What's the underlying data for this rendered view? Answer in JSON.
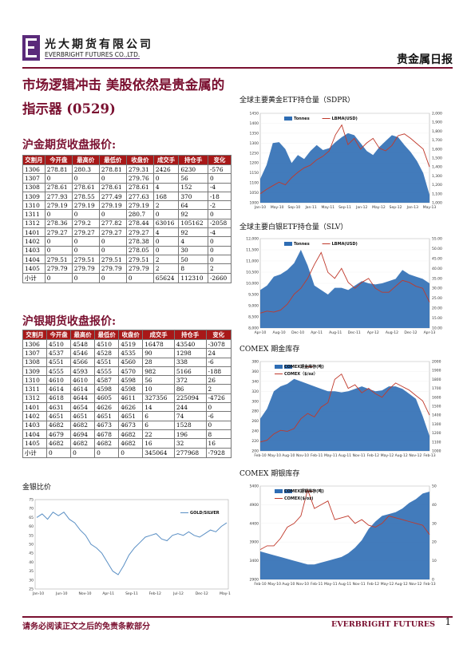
{
  "header": {
    "company_cn": "光大期货有限公司",
    "company_en": "EVERBRIGHT FUTURES CO.,LTD.",
    "doc_type": "贵金属日报"
  },
  "main_title": "市场逻辑冲击 美股依然是贵金属的指示器 (0529)",
  "gold_futures": {
    "title": "沪金期货收盘报价:",
    "headers": [
      "交割月",
      "今开盘",
      "最高价",
      "最低价",
      "收盘价",
      "成交手",
      "持仓手",
      "变化"
    ],
    "rows": [
      [
        "1306",
        "278.81",
        "280.3",
        "278.81",
        "279.31",
        "2426",
        "6230",
        "-576"
      ],
      [
        "1307",
        "0",
        "0",
        "0",
        "279.76",
        "0",
        "56",
        "0"
      ],
      [
        "1308",
        "278.61",
        "278.61",
        "278.61",
        "278.61",
        "4",
        "152",
        "-4"
      ],
      [
        "1309",
        "277.93",
        "278.55",
        "277.49",
        "277.63",
        "168",
        "370",
        "-18"
      ],
      [
        "1310",
        "279.19",
        "279.19",
        "279.19",
        "279.19",
        "2",
        "64",
        "-2"
      ],
      [
        "1311",
        "0",
        "0",
        "0",
        "280.7",
        "0",
        "92",
        "0"
      ],
      [
        "1312",
        "278.36",
        "279.2",
        "277.82",
        "278.44",
        "63016",
        "105162",
        "-2058"
      ],
      [
        "1401",
        "279.27",
        "279.27",
        "279.27",
        "279.27",
        "4",
        "92",
        "-4"
      ],
      [
        "1402",
        "0",
        "0",
        "0",
        "278.38",
        "0",
        "4",
        "0"
      ],
      [
        "1403",
        "0",
        "0",
        "0",
        "278.05",
        "0",
        "30",
        "0"
      ],
      [
        "1404",
        "279.51",
        "279.51",
        "279.51",
        "279.51",
        "2",
        "50",
        "0"
      ],
      [
        "1405",
        "279.79",
        "279.79",
        "279.79",
        "279.79",
        "2",
        "8",
        "2"
      ],
      [
        "小计",
        "0",
        "0",
        "0",
        "0",
        "65624",
        "112310",
        "-2660"
      ]
    ]
  },
  "silver_futures": {
    "title": "沪银期货收盘报价:",
    "headers": [
      "交割月",
      "今开盘",
      "最高价",
      "最低价",
      "收盘价",
      "成交手",
      "持仓手",
      "变化"
    ],
    "rows": [
      [
        "1306",
        "4510",
        "4548",
        "4510",
        "4519",
        "16478",
        "43540",
        "-3078"
      ],
      [
        "1307",
        "4537",
        "4546",
        "4528",
        "4535",
        "90",
        "1298",
        "24"
      ],
      [
        "1308",
        "4551",
        "4566",
        "4551",
        "4560",
        "28",
        "338",
        "-6"
      ],
      [
        "1309",
        "4555",
        "4593",
        "4555",
        "4570",
        "982",
        "5166",
        "-188"
      ],
      [
        "1310",
        "4610",
        "4610",
        "4587",
        "4598",
        "56",
        "372",
        "26"
      ],
      [
        "1311",
        "4614",
        "4614",
        "4598",
        "4598",
        "10",
        "86",
        "2"
      ],
      [
        "1312",
        "4618",
        "4644",
        "4605",
        "4611",
        "327356",
        "225094",
        "-4726"
      ],
      [
        "1401",
        "4631",
        "4654",
        "4626",
        "4626",
        "14",
        "244",
        "0"
      ],
      [
        "1402",
        "4651",
        "4651",
        "4651",
        "4651",
        "6",
        "74",
        "-6"
      ],
      [
        "1403",
        "4682",
        "4682",
        "4673",
        "4673",
        "6",
        "1528",
        "0"
      ],
      [
        "1404",
        "4679",
        "4694",
        "4678",
        "4682",
        "22",
        "196",
        "8"
      ],
      [
        "1405",
        "4682",
        "4682",
        "4682",
        "4682",
        "16",
        "32",
        "16"
      ],
      [
        "小计",
        "0",
        "0",
        "0",
        "0",
        "345064",
        "277968",
        "-7928"
      ]
    ]
  },
  "chart_data": [
    {
      "type": "area",
      "title": "全球主要黄金ETF持仓量（SDPR）",
      "legend": [
        "Tonnes",
        "LBMA(USD)"
      ],
      "x_ticks": [
        "Jan-10",
        "May-10",
        "Sep-10",
        "Jan-11",
        "May-11",
        "Sep-11",
        "Jan-12",
        "May-12",
        "Sep-12",
        "Jan-13",
        "May-13"
      ],
      "ylim": [
        1000,
        1450
      ],
      "y_ticks": [
        "1000",
        "1050",
        "1100",
        "1150",
        "1200",
        "1250",
        "1300",
        "1350",
        "1400",
        "1450"
      ],
      "y2lim": [
        1000,
        2000
      ],
      "y2_ticks": [
        "1,000",
        "1,100",
        "1,200",
        "1,300",
        "1,400",
        "1,500",
        "1,600",
        "1,700",
        "1,800",
        "1,900",
        "2,000"
      ],
      "series": [
        {
          "name": "Tonnes",
          "values": [
            1120,
            1190,
            1300,
            1305,
            1270,
            1200,
            1240,
            1220,
            1260,
            1290,
            1265,
            1275,
            1305,
            1330,
            1350,
            1340,
            1300,
            1260,
            1240,
            1280,
            1310,
            1340,
            1330,
            1290,
            1255,
            1210,
            1150,
            1040
          ]
        },
        {
          "name": "LBMA(USD)",
          "values": [
            1100,
            1150,
            1190,
            1230,
            1200,
            1280,
            1340,
            1390,
            1420,
            1480,
            1520,
            1580,
            1760,
            1870,
            1650,
            1720,
            1600,
            1670,
            1720,
            1610,
            1580,
            1640,
            1750,
            1770,
            1720,
            1660,
            1600,
            1400
          ]
        }
      ]
    },
    {
      "type": "area",
      "title": "全球主要白银ETF持仓量（SLV）",
      "legend": [
        "Tonnes",
        "LBMA(USD)"
      ],
      "x_ticks": [
        "Apr-10",
        "Aug-10",
        "Dec-10",
        "Apr-11",
        "Aug-11",
        "Dec-11",
        "Apr-12",
        "Aug-12",
        "Dec-12",
        "Apr-13"
      ],
      "ylim": [
        8000,
        12000
      ],
      "y_ticks": [
        "8,000",
        "8,500",
        "9,000",
        "9,500",
        "10,000",
        "10,500",
        "11,000",
        "11,500",
        "12,000"
      ],
      "y2lim": [
        10,
        55
      ],
      "y2_ticks": [
        "10.00",
        "15.00",
        "20.00",
        "25.00",
        "30.00",
        "35.00",
        "40.00",
        "45.00",
        "50.00",
        "55.00"
      ],
      "series": [
        {
          "name": "Tonnes",
          "values": [
            9700,
            9900,
            10300,
            10400,
            10600,
            10900,
            11500,
            10800,
            9900,
            9700,
            9500,
            9800,
            9800,
            9700,
            9900,
            10100,
            10000,
            9950,
            10000,
            10100,
            10200,
            10600,
            10400,
            10300,
            10200,
            10000
          ]
        },
        {
          "name": "LBMA(USD)",
          "values": [
            17.5,
            18.5,
            18,
            19,
            22,
            27,
            30,
            35,
            42,
            48,
            38,
            35,
            40,
            33,
            30,
            33,
            35,
            30,
            28,
            28,
            31,
            34,
            33,
            31,
            30,
            23
          ]
        }
      ]
    },
    {
      "type": "area",
      "title": "COMEX 期金库存",
      "legend": [
        "COMEX期金库存(吨)",
        "COMEX（$/oz）"
      ],
      "x_ticks": [
        "Feb-10",
        "May-10",
        "Aug-10",
        "Nov-10",
        "Feb-11",
        "May-11",
        "Aug-11",
        "Nov-11",
        "Feb-12",
        "May-12",
        "Aug-12",
        "Nov-12",
        "Feb-13"
      ],
      "ylim": [
        200,
        380
      ],
      "y_ticks": [
        "200",
        "220",
        "240",
        "260",
        "280",
        "300",
        "320",
        "340",
        "360",
        "380"
      ],
      "y2lim": [
        1000,
        2000
      ],
      "y2_ticks": [
        "1000",
        "1100",
        "1200",
        "1300",
        "1400",
        "1500",
        "1600",
        "1700",
        "1800",
        "1900",
        "2000"
      ],
      "series": [
        {
          "name": "COMEX期金库存(吨)",
          "values": [
            265,
            285,
            320,
            330,
            335,
            345,
            340,
            335,
            330,
            325,
            320,
            320,
            318,
            320,
            325,
            330,
            325,
            320,
            322,
            330,
            330,
            325,
            315,
            305,
            270,
            230
          ]
        },
        {
          "name": "COMEX（$/oz）",
          "values": [
            1100,
            1120,
            1190,
            1230,
            1220,
            1250,
            1360,
            1420,
            1380,
            1490,
            1540,
            1800,
            1860,
            1700,
            1740,
            1650,
            1700,
            1640,
            1600,
            1690,
            1760,
            1720,
            1680,
            1620,
            1560,
            1400
          ]
        }
      ]
    },
    {
      "type": "area",
      "title": "COMEX 期银库存",
      "legend": [
        "COMEX期银库存(吨)",
        "COMEX($/oz)"
      ],
      "x_ticks": [
        "Feb-10",
        "May-10",
        "Aug-10",
        "Nov-10",
        "Feb-11",
        "May-11",
        "Aug-11",
        "Nov-11",
        "Feb-12",
        "May-12",
        "Aug-12",
        "Nov-12",
        "Feb-13"
      ],
      "ylim": [
        2900,
        5400
      ],
      "y_ticks": [
        "2900",
        "3400",
        "3900",
        "4400",
        "4900",
        "5400"
      ],
      "y2lim": [
        0,
        50
      ],
      "y2_ticks": [
        "0",
        "10",
        "20",
        "30",
        "40",
        "50"
      ],
      "series": [
        {
          "name": "COMEX期银库存(吨)",
          "values": [
            3650,
            3600,
            3550,
            3500,
            3450,
            3400,
            3350,
            3300,
            3300,
            3350,
            3400,
            3450,
            3500,
            3600,
            3750,
            3950,
            4250,
            4450,
            4600,
            4650,
            4700,
            4800,
            4950,
            5050,
            5200,
            5250
          ]
        },
        {
          "name": "COMEX($/oz)",
          "values": [
            16,
            18,
            18,
            22,
            28,
            30,
            34,
            48,
            38,
            40,
            42,
            32,
            33,
            34,
            30,
            32,
            29,
            28,
            30,
            34,
            33,
            32,
            31,
            30,
            29,
            24
          ]
        }
      ]
    },
    {
      "type": "line",
      "title": "金银比价",
      "legend": [
        "GOLD/SILVER"
      ],
      "x_ticks": [
        "Jan-10",
        "Jun-10",
        "Nov-10",
        "Apr-11",
        "Sep-11",
        "Feb-12",
        "Jul-12",
        "Dec-12",
        "May-1"
      ],
      "ylim": [
        25,
        75
      ],
      "y_ticks": [
        "25",
        "30",
        "35",
        "40",
        "45",
        "50",
        "55",
        "60",
        "65",
        "70",
        "75"
      ],
      "series": [
        {
          "name": "GOLD/SILVER",
          "values": [
            65,
            67,
            64,
            68,
            66,
            68,
            64,
            62,
            58,
            55,
            50,
            48,
            45,
            40,
            35,
            33,
            38,
            44,
            48,
            51,
            54,
            55,
            56,
            53,
            52,
            55,
            56,
            55,
            57,
            55,
            54,
            56,
            58,
            57,
            60,
            62
          ]
        }
      ]
    }
  ],
  "footer": {
    "disclaimer": "请务必阅读正文之后的免责条款部分",
    "brand": "EVERBRIGHT FUTURES",
    "page": "1"
  },
  "colors": {
    "accent": "#7a1030",
    "table_header": "#a81818",
    "area_fill": "#2e6db4",
    "price_line": "#c0392b",
    "ratio_line": "#5a8fc4"
  }
}
